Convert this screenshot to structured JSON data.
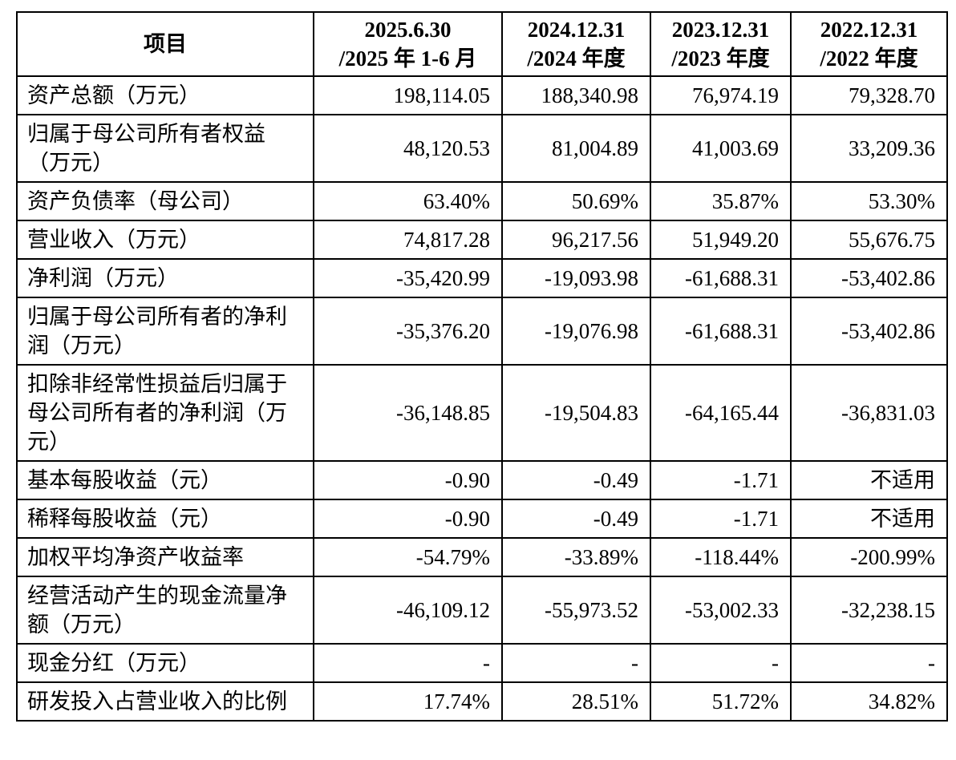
{
  "page": {
    "background_color": "#ffffff",
    "text_color": "#000000",
    "border_color": "#000000"
  },
  "table": {
    "header": {
      "item_label": "项目",
      "columns": [
        {
          "line1": "2025.6.30",
          "line2": "/2025 年 1-6 月"
        },
        {
          "line1": "2024.12.31",
          "line2": "/2024 年度"
        },
        {
          "line1": "2023.12.31",
          "line2": "/2023 年度"
        },
        {
          "line1": "2022.12.31",
          "line2": "/2022 年度"
        }
      ]
    },
    "rows": [
      {
        "label": "资产总额（万元）",
        "values": [
          "198,114.05",
          "188,340.98",
          "76,974.19",
          "79,328.70"
        ]
      },
      {
        "label": "归属于母公司所有者权益（万元）",
        "values": [
          "48,120.53",
          "81,004.89",
          "41,003.69",
          "33,209.36"
        ]
      },
      {
        "label": "资产负债率（母公司）",
        "values": [
          "63.40%",
          "50.69%",
          "35.87%",
          "53.30%"
        ]
      },
      {
        "label": "营业收入（万元）",
        "values": [
          "74,817.28",
          "96,217.56",
          "51,949.20",
          "55,676.75"
        ]
      },
      {
        "label": "净利润（万元）",
        "values": [
          "-35,420.99",
          "-19,093.98",
          "-61,688.31",
          "-53,402.86"
        ]
      },
      {
        "label": "归属于母公司所有者的净利润（万元）",
        "values": [
          "-35,376.20",
          "-19,076.98",
          "-61,688.31",
          "-53,402.86"
        ]
      },
      {
        "label": "扣除非经常性损益后归属于母公司所有者的净利润（万元）",
        "values": [
          "-36,148.85",
          "-19,504.83",
          "-64,165.44",
          "-36,831.03"
        ]
      },
      {
        "label": "基本每股收益（元）",
        "values": [
          "-0.90",
          "-0.49",
          "-1.71",
          "不适用"
        ]
      },
      {
        "label": "稀释每股收益（元）",
        "values": [
          "-0.90",
          "-0.49",
          "-1.71",
          "不适用"
        ]
      },
      {
        "label": "加权平均净资产收益率",
        "values": [
          "-54.79%",
          "-33.89%",
          "-118.44%",
          "-200.99%"
        ]
      },
      {
        "label": "经营活动产生的现金流量净额（万元）",
        "values": [
          "-46,109.12",
          "-55,973.52",
          "-53,002.33",
          "-32,238.15"
        ]
      },
      {
        "label": "现金分红（万元）",
        "values": [
          "-",
          "-",
          "-",
          "-"
        ]
      },
      {
        "label": "研发投入占营业收入的比例",
        "values": [
          "17.74%",
          "28.51%",
          "51.72%",
          "34.82%"
        ]
      }
    ]
  }
}
